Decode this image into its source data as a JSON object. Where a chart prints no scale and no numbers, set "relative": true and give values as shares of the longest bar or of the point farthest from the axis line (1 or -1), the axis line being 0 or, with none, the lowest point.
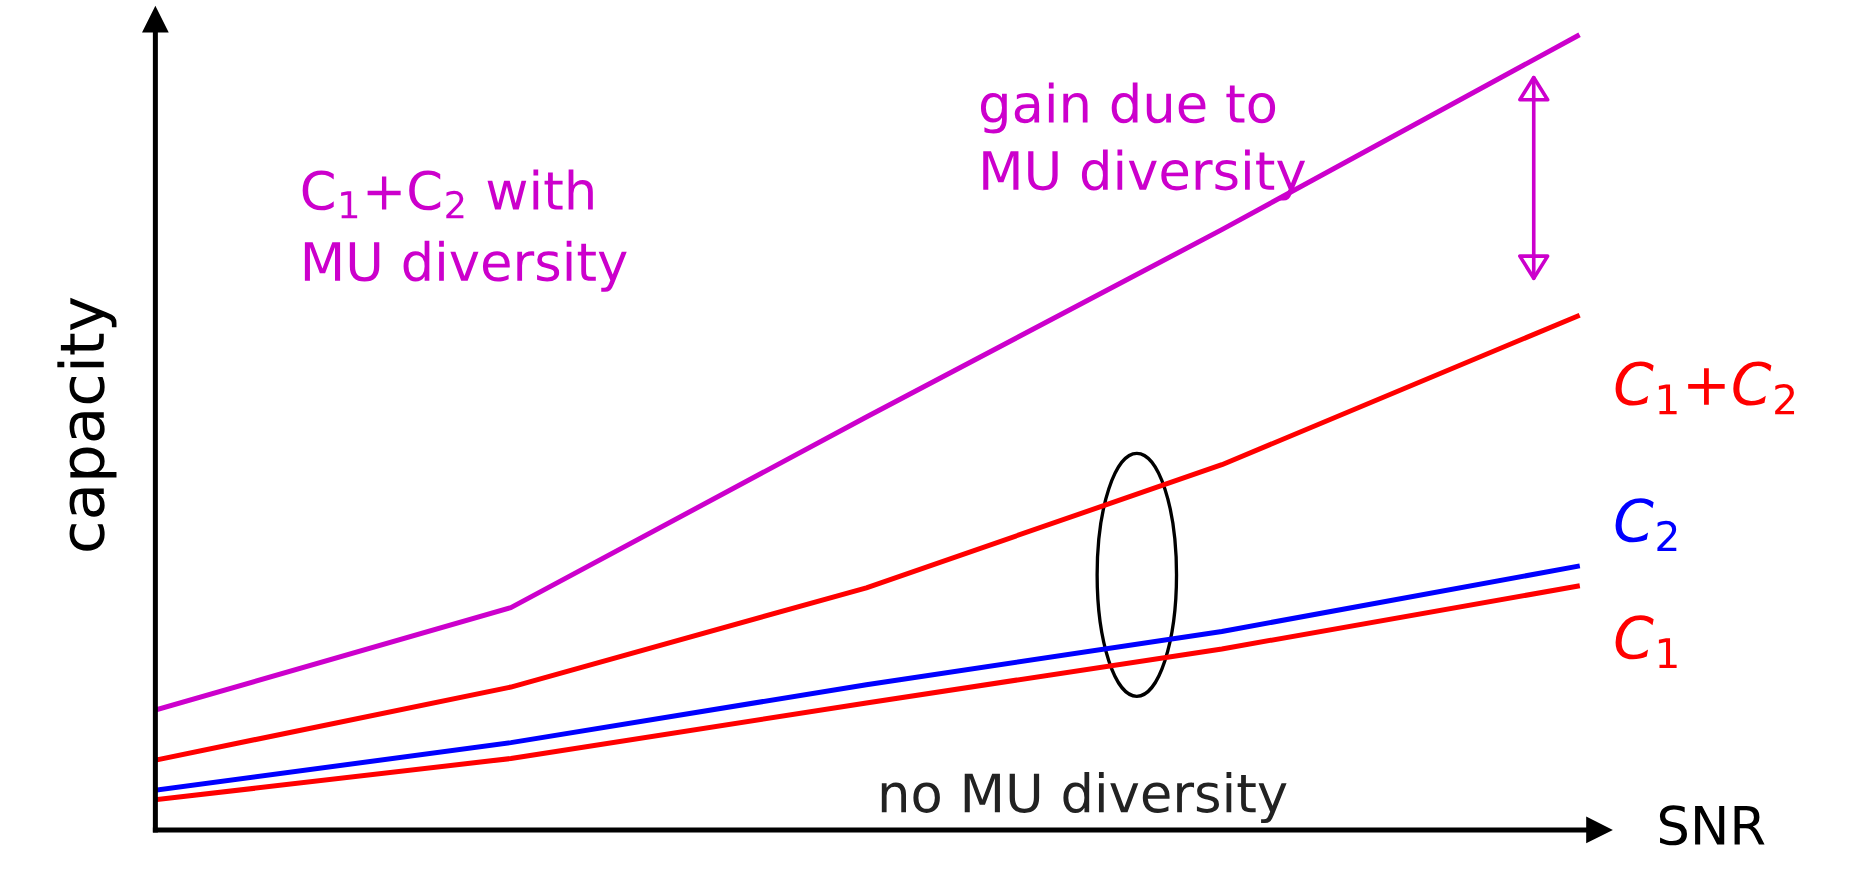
{
  "chart_data": {
    "type": "line",
    "relative": true,
    "xlabel": "SNR",
    "ylabel": "capacity",
    "categories": [
      null,
      null,
      null,
      null,
      null
    ],
    "series": [
      {
        "name": "C$_{1}$+C$_{2}$ with\nMU diversity",
        "color": "#cc00cc",
        "values": [
          0.151,
          0.28,
          0.52,
          0.756,
          1.0
        ]
      },
      {
        "name": "C$_{1}$+C$_{2}$",
        "color": "#ff0000",
        "values": [
          0.088,
          0.18,
          0.305,
          0.46,
          0.647
        ]
      },
      {
        "name": "C$_{2}$",
        "color": "#0000ff",
        "values": [
          0.05,
          0.11,
          0.183,
          0.25,
          0.332
        ]
      },
      {
        "name": "C$_{1}$",
        "color": "#ff0000",
        "values": [
          0.038,
          0.09,
          0.16,
          0.228,
          0.307
        ]
      }
    ],
    "annotations": [
      "gain due to\nMU diversity",
      "no MU diversity"
    ],
    "marker": "none",
    "line_style": "solid"
  }
}
